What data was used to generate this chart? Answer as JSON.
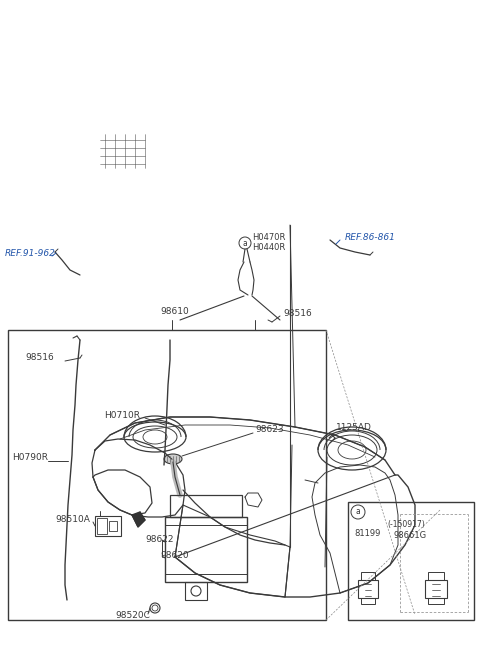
{
  "bg_color": "#ffffff",
  "line_color": "#3a3a3a",
  "text_color": "#3a3a3a",
  "ref_color": "#2255aa",
  "labels": {
    "ref_86_861": "REF.86-861",
    "ref_91_962": "REF.91-962",
    "h0470r": "H0470R",
    "h0440r": "H0440R",
    "98610": "98610",
    "98516_top": "98516",
    "98516_box": "98516",
    "h0710r": "H0710R",
    "h0790r": "H0790R",
    "98510a": "98510A",
    "98620": "98620",
    "98622": "98622",
    "98520c": "98520C",
    "98623": "98623",
    "1125ad": "1125AD",
    "81199": "81199",
    "150917": "(-150917)",
    "98661g": "98661G"
  }
}
